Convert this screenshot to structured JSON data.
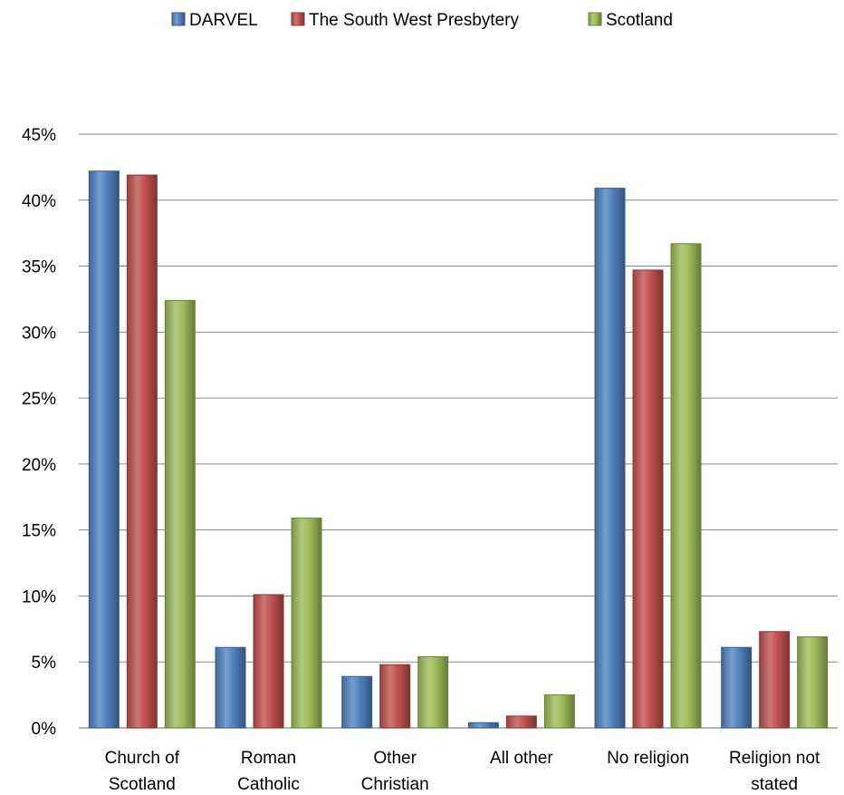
{
  "chart_data": {
    "type": "bar",
    "title": "",
    "xlabel": "",
    "ylabel": "",
    "ylim": [
      0,
      45
    ],
    "ytick_step": 5,
    "ytick_format": "percent",
    "grid": true,
    "legend_position": "top",
    "categories": [
      [
        "Church of",
        "Scotland"
      ],
      [
        "Roman",
        "Catholic"
      ],
      [
        "Other",
        "Christian"
      ],
      [
        "All other"
      ],
      [
        "No religion"
      ],
      [
        "Religion not",
        "stated"
      ]
    ],
    "series": [
      {
        "name": "DARVEL",
        "color": "#4f81bd",
        "values": [
          42.2,
          6.1,
          3.9,
          0.4,
          40.9,
          6.1
        ]
      },
      {
        "name": "The South West Presbytery",
        "color": "#c0504d",
        "values": [
          41.9,
          10.1,
          4.8,
          0.9,
          34.7,
          7.3
        ]
      },
      {
        "name": "Scotland",
        "color": "#9bbb59",
        "values": [
          32.4,
          15.9,
          5.4,
          2.5,
          36.7,
          6.9
        ]
      }
    ]
  }
}
